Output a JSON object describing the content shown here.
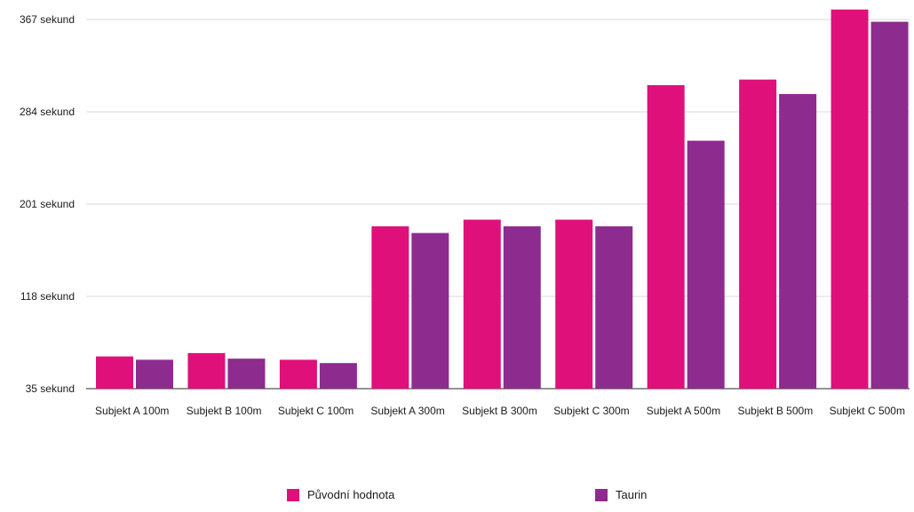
{
  "chart_data": {
    "type": "bar",
    "categories": [
      "Subjekt A 100m",
      "Subjekt B 100m",
      "Subjekt C 100m",
      "Subjekt A 300m",
      "Subjekt B 300m",
      "Subjekt C 300m",
      "Subjekt A 500m",
      "Subjekt B 500m",
      "Subjekt C 500m"
    ],
    "series": [
      {
        "name": "Původní hodnota",
        "color": "#e0107a",
        "values": [
          64,
          67,
          61,
          181,
          187,
          187,
          308,
          313,
          376
        ]
      },
      {
        "name": "Taurin",
        "color": "#8e2b8f",
        "values": [
          61,
          62,
          58,
          175,
          181,
          181,
          258,
          300,
          365
        ]
      }
    ],
    "title": "",
    "xlabel": "",
    "ylabel": "",
    "ylim": [
      35,
      367
    ],
    "yticks": [
      35,
      118,
      201,
      284,
      367
    ],
    "ytick_labels": [
      "35 sekund",
      "118 sekund",
      "201 sekund",
      "284 sekund",
      "367 sekund"
    ],
    "grid": true,
    "legend_position": "bottom"
  }
}
